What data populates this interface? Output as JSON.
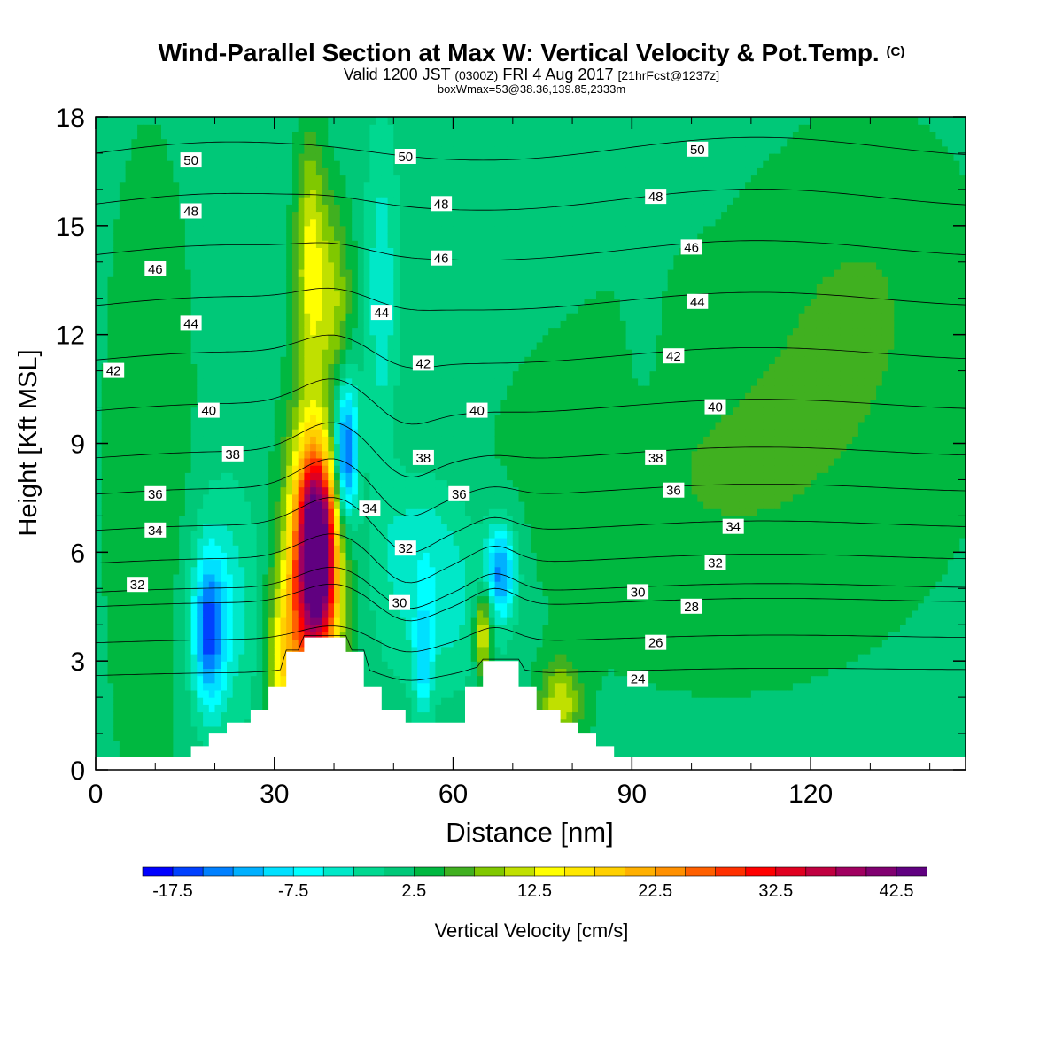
{
  "chart_data": {
    "type": "heatmap",
    "title": "Wind-Parallel Section at Max W: Vertical Velocity & Pot.Temp.",
    "title_mark": "(C)",
    "subtitle_parts": [
      "Valid 1200 JST",
      "(0300Z)",
      "FRI 4 Aug 2017",
      "[21hrFcst@1237z]"
    ],
    "info_line": "boxWmax=53@38.36,139.85,2333m",
    "xlabel": "Distance [nm]",
    "ylabel": "Height [Kft MSL]",
    "xlim": [
      0,
      146
    ],
    "ylim": [
      0,
      18
    ],
    "x_ticks": [
      "0",
      "30",
      "60",
      "90",
      "120"
    ],
    "y_ticks": [
      "0",
      "3",
      "6",
      "9",
      "12",
      "15",
      "18"
    ],
    "colorbar": {
      "label": "Vertical Velocity [cm/s]",
      "tick_labels": [
        "-17.5",
        "-7.5",
        "2.5",
        "12.5",
        "22.5",
        "32.5",
        "42.5"
      ],
      "min": -20,
      "step": 2.5,
      "colors": [
        "#0000ff",
        "#0040ff",
        "#0080ff",
        "#00b0ff",
        "#00e0ff",
        "#00ffff",
        "#00e8c8",
        "#00d890",
        "#00c878",
        "#00b840",
        "#40b020",
        "#80c800",
        "#c0e000",
        "#ffff00",
        "#ffe800",
        "#ffd000",
        "#ffb000",
        "#ff9000",
        "#ff6000",
        "#ff3000",
        "#ff0000",
        "#e00020",
        "#c00040",
        "#a00060",
        "#800070",
        "#600080"
      ]
    },
    "theta_levels": [
      {
        "value": 24,
        "height_kft": 2.6
      },
      {
        "value": 26,
        "height_kft": 3.5
      },
      {
        "value": 28,
        "height_kft": 4.5
      },
      {
        "value": 30,
        "height_kft": 4.9
      },
      {
        "value": 32,
        "height_kft": 5.7
      },
      {
        "value": 34,
        "height_kft": 6.6
      },
      {
        "value": 36,
        "height_kft": 7.6
      },
      {
        "value": 38,
        "height_kft": 8.6
      },
      {
        "value": 40,
        "height_kft": 9.9
      },
      {
        "value": 42,
        "height_kft": 11.3
      },
      {
        "value": 44,
        "height_kft": 12.8
      },
      {
        "value": 46,
        "height_kft": 14.2
      },
      {
        "value": 48,
        "height_kft": 15.6
      },
      {
        "value": 50,
        "height_kft": 17.0
      }
    ],
    "contour_labels": [
      {
        "text": "50",
        "x": 16,
        "y": 16.8
      },
      {
        "text": "50",
        "x": 52,
        "y": 16.9
      },
      {
        "text": "50",
        "x": 101,
        "y": 17.1
      },
      {
        "text": "48",
        "x": 16,
        "y": 15.4
      },
      {
        "text": "48",
        "x": 58,
        "y": 15.6
      },
      {
        "text": "48",
        "x": 94,
        "y": 15.8
      },
      {
        "text": "46",
        "x": 10,
        "y": 13.8
      },
      {
        "text": "46",
        "x": 58,
        "y": 14.1
      },
      {
        "text": "46",
        "x": 100,
        "y": 14.4
      },
      {
        "text": "44",
        "x": 16,
        "y": 12.3
      },
      {
        "text": "44",
        "x": 48,
        "y": 12.6
      },
      {
        "text": "44",
        "x": 101,
        "y": 12.9
      },
      {
        "text": "42",
        "x": 3,
        "y": 11.0
      },
      {
        "text": "42",
        "x": 55,
        "y": 11.2
      },
      {
        "text": "42",
        "x": 97,
        "y": 11.4
      },
      {
        "text": "40",
        "x": 19,
        "y": 9.9
      },
      {
        "text": "40",
        "x": 64,
        "y": 9.9
      },
      {
        "text": "40",
        "x": 104,
        "y": 10.0
      },
      {
        "text": "38",
        "x": 23,
        "y": 8.7
      },
      {
        "text": "38",
        "x": 55,
        "y": 8.6
      },
      {
        "text": "38",
        "x": 94,
        "y": 8.6
      },
      {
        "text": "36",
        "x": 10,
        "y": 7.6
      },
      {
        "text": "36",
        "x": 61,
        "y": 7.6
      },
      {
        "text": "36",
        "x": 97,
        "y": 7.7
      },
      {
        "text": "34",
        "x": 10,
        "y": 6.6
      },
      {
        "text": "34",
        "x": 46,
        "y": 7.2
      },
      {
        "text": "34",
        "x": 107,
        "y": 6.7
      },
      {
        "text": "32",
        "x": 7,
        "y": 5.1
      },
      {
        "text": "32",
        "x": 52,
        "y": 6.1
      },
      {
        "text": "32",
        "x": 104,
        "y": 5.7
      },
      {
        "text": "30",
        "x": 51,
        "y": 4.6
      },
      {
        "text": "30",
        "x": 91,
        "y": 4.9
      },
      {
        "text": "28",
        "x": 100,
        "y": 4.5
      },
      {
        "text": "26",
        "x": 94,
        "y": 3.5
      },
      {
        "text": "24",
        "x": 91,
        "y": 2.5
      }
    ],
    "terrain": [
      [
        0,
        0.35
      ],
      [
        16,
        0.35
      ],
      [
        16,
        0.65
      ],
      [
        19,
        0.65
      ],
      [
        19,
        1.0
      ],
      [
        22,
        1.0
      ],
      [
        22,
        1.3
      ],
      [
        26,
        1.3
      ],
      [
        26,
        1.65
      ],
      [
        29,
        1.65
      ],
      [
        29,
        2.3
      ],
      [
        32,
        2.3
      ],
      [
        32,
        3.25
      ],
      [
        35,
        3.25
      ],
      [
        35,
        3.65
      ],
      [
        42,
        3.65
      ],
      [
        42,
        3.25
      ],
      [
        45,
        3.25
      ],
      [
        45,
        2.3
      ],
      [
        48,
        2.3
      ],
      [
        48,
        1.65
      ],
      [
        52,
        1.65
      ],
      [
        52,
        1.3
      ],
      [
        62,
        1.3
      ],
      [
        62,
        2.3
      ],
      [
        65,
        2.3
      ],
      [
        65,
        3.0
      ],
      [
        71,
        3.0
      ],
      [
        71,
        2.3
      ],
      [
        74,
        2.3
      ],
      [
        74,
        1.65
      ],
      [
        78,
        1.65
      ],
      [
        78,
        1.3
      ],
      [
        81,
        1.3
      ],
      [
        81,
        1.0
      ],
      [
        84,
        1.0
      ],
      [
        84,
        0.65
      ],
      [
        87,
        0.65
      ],
      [
        87,
        0.35
      ],
      [
        146,
        0.35
      ]
    ],
    "w_features": [
      {
        "x": 37,
        "y": 6.0,
        "rx": 3.4,
        "ry": 3.0,
        "w": 45
      },
      {
        "x": 37,
        "y": 6.2,
        "rx": 5.5,
        "ry": 4.5,
        "w": 12
      },
      {
        "x": 36,
        "y": 14.0,
        "rx": 2.5,
        "ry": 3.5,
        "w": 12
      },
      {
        "x": 40,
        "y": 12.5,
        "rx": 3.0,
        "ry": 3.0,
        "w": 10
      },
      {
        "x": 42,
        "y": 8.7,
        "rx": 2.0,
        "ry": 2.0,
        "w": -19
      },
      {
        "x": 39,
        "y": 9.5,
        "rx": 4.0,
        "ry": 3.0,
        "w": -8
      },
      {
        "x": 48,
        "y": 13.0,
        "rx": 2.5,
        "ry": 4.0,
        "w": -6
      },
      {
        "x": 19,
        "y": 3.8,
        "rx": 2.5,
        "ry": 2.0,
        "w": -14
      },
      {
        "x": 21,
        "y": 4.5,
        "rx": 6.0,
        "ry": 3.0,
        "w": -6
      },
      {
        "x": 68,
        "y": 5.5,
        "rx": 2.5,
        "ry": 1.3,
        "w": -14
      },
      {
        "x": 58,
        "y": 4.5,
        "rx": 10.0,
        "ry": 2.2,
        "w": -5
      },
      {
        "x": 54,
        "y": 6.5,
        "rx": 8.0,
        "ry": 1.8,
        "w": -4
      },
      {
        "x": 65,
        "y": 3.8,
        "rx": 1.5,
        "ry": 1.2,
        "w": 14
      },
      {
        "x": 55,
        "y": 3.0,
        "rx": 1.5,
        "ry": 1.5,
        "w": -9
      },
      {
        "x": 78,
        "y": 1.8,
        "rx": 3.5,
        "ry": 1.2,
        "w": 10
      },
      {
        "x": 32,
        "y": 3.0,
        "rx": 3.0,
        "ry": 2.5,
        "w": 14
      },
      {
        "x": 105,
        "y": 8.0,
        "rx": 40.0,
        "ry": 6.0,
        "w": 4
      },
      {
        "x": 130,
        "y": 14.0,
        "rx": 20.0,
        "ry": 5.0,
        "w": 3
      },
      {
        "x": 9,
        "y": 8.0,
        "rx": 8.0,
        "ry": 10.0,
        "w": 4
      },
      {
        "x": 92,
        "y": 12.0,
        "rx": 3.0,
        "ry": 3.0,
        "w": -2
      }
    ]
  }
}
